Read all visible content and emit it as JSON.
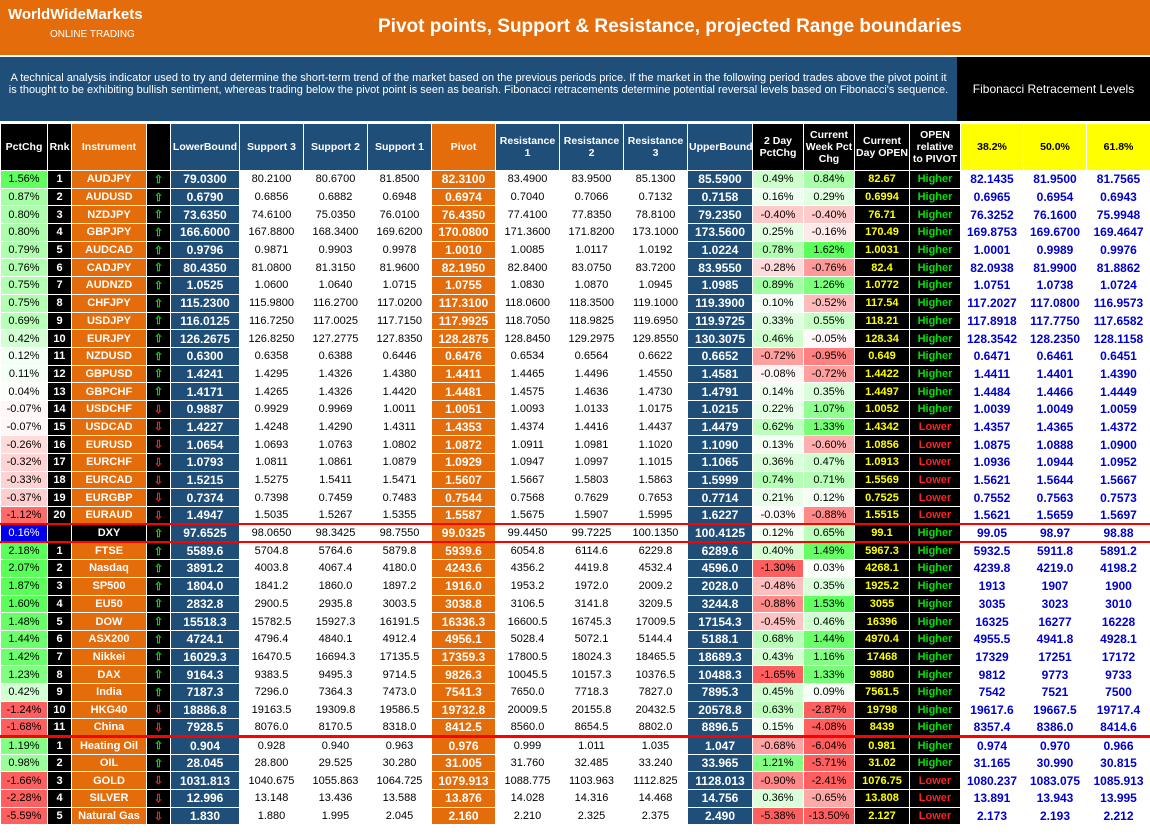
{
  "header": {
    "brand": "WorldWideMarkets",
    "subbrand": "ONLINE TRADING",
    "title": "Pivot points, Support & Resistance, projected Range boundaries"
  },
  "description": "A technical analysis indicator used to try and determine the short-term trend of the market based on the previous periods price. If the market in the following period trades above the pivot point it is thought to be exhibiting bullish sentiment, whereas trading below the pivot point is seen as bearish. Fibonacci retracements determine potential reversal levels based on Fibonacci's sequence.",
  "fib_title": "Fibonacci Retracement Levels",
  "columns": [
    "PctChg",
    "Rnk",
    "Instrument",
    "",
    "LowerBound",
    "Support 3",
    "Support 2",
    "Support 1",
    "Pivot",
    "Resistance 1",
    "Resistance 2",
    "Resistance 3",
    "UpperBound",
    "2 Day PctChg",
    "Current Week Pct Chg",
    "Current Day OPEN",
    "OPEN relative to PIVOT",
    "38.2%",
    "50.0%",
    "61.8%"
  ],
  "colors": {
    "orange": "#e46c0a",
    "navy": "#1f4e79",
    "yellow": "#ffff00",
    "up": "#00e000",
    "down": "#ff2020",
    "fib_text": "#0000cc",
    "sep": "#ff0000"
  },
  "icons": {
    "up": "up-arrow-icon",
    "down": "down-arrow-icon"
  },
  "rows": [
    {
      "pct": "1.56%",
      "rnk": "1",
      "inst": "AUDJPY",
      "dir": "up",
      "lb": "79.0300",
      "s3": "80.2100",
      "s2": "80.6700",
      "s1": "81.8500",
      "pv": "82.3100",
      "r1": "83.4900",
      "r2": "83.9500",
      "r3": "85.1300",
      "ub": "85.5900",
      "d2": "0.49%",
      "wk": "0.84%",
      "op": "82.67",
      "rel": "Higher",
      "f1": "82.1435",
      "f2": "81.9500",
      "f3": "81.7565"
    },
    {
      "pct": "0.87%",
      "rnk": "2",
      "inst": "AUDUSD",
      "dir": "up",
      "lb": "0.6790",
      "s3": "0.6856",
      "s2": "0.6882",
      "s1": "0.6948",
      "pv": "0.6974",
      "r1": "0.7040",
      "r2": "0.7066",
      "r3": "0.7132",
      "ub": "0.7158",
      "d2": "0.16%",
      "wk": "0.29%",
      "op": "0.6994",
      "rel": "Higher",
      "f1": "0.6965",
      "f2": "0.6954",
      "f3": "0.6943"
    },
    {
      "pct": "0.80%",
      "rnk": "3",
      "inst": "NZDJPY",
      "dir": "up",
      "lb": "73.6350",
      "s3": "74.6100",
      "s2": "75.0350",
      "s1": "76.0100",
      "pv": "76.4350",
      "r1": "77.4100",
      "r2": "77.8350",
      "r3": "78.8100",
      "ub": "79.2350",
      "d2": "-0.40%",
      "wk": "-0.40%",
      "op": "76.71",
      "rel": "Higher",
      "f1": "76.3252",
      "f2": "76.1600",
      "f3": "75.9948"
    },
    {
      "pct": "0.80%",
      "rnk": "4",
      "inst": "GBPJPY",
      "dir": "up",
      "lb": "166.6000",
      "s3": "167.8800",
      "s2": "168.3400",
      "s1": "169.6200",
      "pv": "170.0800",
      "r1": "171.3600",
      "r2": "171.8200",
      "r3": "173.1000",
      "ub": "173.5600",
      "d2": "0.25%",
      "wk": "-0.16%",
      "op": "170.49",
      "rel": "Higher",
      "f1": "169.8753",
      "f2": "169.6700",
      "f3": "169.4647"
    },
    {
      "pct": "0.79%",
      "rnk": "5",
      "inst": "AUDCAD",
      "dir": "up",
      "lb": "0.9796",
      "s3": "0.9871",
      "s2": "0.9903",
      "s1": "0.9978",
      "pv": "1.0010",
      "r1": "1.0085",
      "r2": "1.0117",
      "r3": "1.0192",
      "ub": "1.0224",
      "d2": "0.78%",
      "wk": "1.62%",
      "op": "1.0031",
      "rel": "Higher",
      "f1": "1.0001",
      "f2": "0.9989",
      "f3": "0.9976"
    },
    {
      "pct": "0.76%",
      "rnk": "6",
      "inst": "CADJPY",
      "dir": "up",
      "lb": "80.4350",
      "s3": "81.0800",
      "s2": "81.3150",
      "s1": "81.9600",
      "pv": "82.1950",
      "r1": "82.8400",
      "r2": "83.0750",
      "r3": "83.7200",
      "ub": "83.9550",
      "d2": "-0.28%",
      "wk": "-0.76%",
      "op": "82.4",
      "rel": "Higher",
      "f1": "82.0938",
      "f2": "81.9900",
      "f3": "81.8862"
    },
    {
      "pct": "0.75%",
      "rnk": "7",
      "inst": "AUDNZD",
      "dir": "up",
      "lb": "1.0525",
      "s3": "1.0600",
      "s2": "1.0640",
      "s1": "1.0715",
      "pv": "1.0755",
      "r1": "1.0830",
      "r2": "1.0870",
      "r3": "1.0945",
      "ub": "1.0985",
      "d2": "0.89%",
      "wk": "1.26%",
      "op": "1.0772",
      "rel": "Higher",
      "f1": "1.0751",
      "f2": "1.0738",
      "f3": "1.0724"
    },
    {
      "pct": "0.75%",
      "rnk": "8",
      "inst": "CHFJPY",
      "dir": "up",
      "lb": "115.2300",
      "s3": "115.9800",
      "s2": "116.2700",
      "s1": "117.0200",
      "pv": "117.3100",
      "r1": "118.0600",
      "r2": "118.3500",
      "r3": "119.1000",
      "ub": "119.3900",
      "d2": "0.10%",
      "wk": "-0.52%",
      "op": "117.54",
      "rel": "Higher",
      "f1": "117.2027",
      "f2": "117.0800",
      "f3": "116.9573"
    },
    {
      "pct": "0.69%",
      "rnk": "9",
      "inst": "USDJPY",
      "dir": "up",
      "lb": "116.0125",
      "s3": "116.7250",
      "s2": "117.0025",
      "s1": "117.7150",
      "pv": "117.9925",
      "r1": "118.7050",
      "r2": "118.9825",
      "r3": "119.6950",
      "ub": "119.9725",
      "d2": "0.33%",
      "wk": "0.55%",
      "op": "118.21",
      "rel": "Higher",
      "f1": "117.8918",
      "f2": "117.7750",
      "f3": "117.6582"
    },
    {
      "pct": "0.42%",
      "rnk": "10",
      "inst": "EURJPY",
      "dir": "up",
      "lb": "126.2675",
      "s3": "126.8250",
      "s2": "127.2775",
      "s1": "127.8350",
      "pv": "128.2875",
      "r1": "128.8450",
      "r2": "129.2975",
      "r3": "129.8550",
      "ub": "130.3075",
      "d2": "0.46%",
      "wk": "-0.05%",
      "op": "128.34",
      "rel": "Higher",
      "f1": "128.3542",
      "f2": "128.2350",
      "f3": "128.1158"
    },
    {
      "pct": "0.12%",
      "rnk": "11",
      "inst": "NZDUSD",
      "dir": "up",
      "lb": "0.6300",
      "s3": "0.6358",
      "s2": "0.6388",
      "s1": "0.6446",
      "pv": "0.6476",
      "r1": "0.6534",
      "r2": "0.6564",
      "r3": "0.6622",
      "ub": "0.6652",
      "d2": "-0.72%",
      "wk": "-0.95%",
      "op": "0.649",
      "rel": "Higher",
      "f1": "0.6471",
      "f2": "0.6461",
      "f3": "0.6451"
    },
    {
      "pct": "0.11%",
      "rnk": "12",
      "inst": "GBPUSD",
      "dir": "up",
      "lb": "1.4241",
      "s3": "1.4295",
      "s2": "1.4326",
      "s1": "1.4380",
      "pv": "1.4411",
      "r1": "1.4465",
      "r2": "1.4496",
      "r3": "1.4550",
      "ub": "1.4581",
      "d2": "-0.08%",
      "wk": "-0.72%",
      "op": "1.4422",
      "rel": "Higher",
      "f1": "1.4411",
      "f2": "1.4401",
      "f3": "1.4390"
    },
    {
      "pct": "0.04%",
      "rnk": "13",
      "inst": "GBPCHF",
      "dir": "up",
      "lb": "1.4171",
      "s3": "1.4265",
      "s2": "1.4326",
      "s1": "1.4420",
      "pv": "1.4481",
      "r1": "1.4575",
      "r2": "1.4636",
      "r3": "1.4730",
      "ub": "1.4791",
      "d2": "0.14%",
      "wk": "0.35%",
      "op": "1.4497",
      "rel": "Higher",
      "f1": "1.4484",
      "f2": "1.4466",
      "f3": "1.4449"
    },
    {
      "pct": "-0.07%",
      "rnk": "14",
      "inst": "USDCHF",
      "dir": "down",
      "lb": "0.9887",
      "s3": "0.9929",
      "s2": "0.9969",
      "s1": "1.0011",
      "pv": "1.0051",
      "r1": "1.0093",
      "r2": "1.0133",
      "r3": "1.0175",
      "ub": "1.0215",
      "d2": "0.22%",
      "wk": "1.07%",
      "op": "1.0052",
      "rel": "Higher",
      "f1": "1.0039",
      "f2": "1.0049",
      "f3": "1.0059"
    },
    {
      "pct": "-0.07%",
      "rnk": "15",
      "inst": "USDCAD",
      "dir": "down",
      "lb": "1.4227",
      "s3": "1.4248",
      "s2": "1.4290",
      "s1": "1.4311",
      "pv": "1.4353",
      "r1": "1.4374",
      "r2": "1.4416",
      "r3": "1.4437",
      "ub": "1.4479",
      "d2": "0.62%",
      "wk": "1.33%",
      "op": "1.4342",
      "rel": "Lower",
      "f1": "1.4357",
      "f2": "1.4365",
      "f3": "1.4372"
    },
    {
      "pct": "-0.26%",
      "rnk": "16",
      "inst": "EURUSD",
      "dir": "down",
      "lb": "1.0654",
      "s3": "1.0693",
      "s2": "1.0763",
      "s1": "1.0802",
      "pv": "1.0872",
      "r1": "1.0911",
      "r2": "1.0981",
      "r3": "1.1020",
      "ub": "1.1090",
      "d2": "0.13%",
      "wk": "-0.60%",
      "op": "1.0856",
      "rel": "Lower",
      "f1": "1.0875",
      "f2": "1.0888",
      "f3": "1.0900"
    },
    {
      "pct": "-0.32%",
      "rnk": "17",
      "inst": "EURCHF",
      "dir": "down",
      "lb": "1.0793",
      "s3": "1.0811",
      "s2": "1.0861",
      "s1": "1.0879",
      "pv": "1.0929",
      "r1": "1.0947",
      "r2": "1.0997",
      "r3": "1.1015",
      "ub": "1.1065",
      "d2": "0.36%",
      "wk": "0.47%",
      "op": "1.0913",
      "rel": "Lower",
      "f1": "1.0936",
      "f2": "1.0944",
      "f3": "1.0952"
    },
    {
      "pct": "-0.33%",
      "rnk": "18",
      "inst": "EURCAD",
      "dir": "down",
      "lb": "1.5215",
      "s3": "1.5275",
      "s2": "1.5411",
      "s1": "1.5471",
      "pv": "1.5607",
      "r1": "1.5667",
      "r2": "1.5803",
      "r3": "1.5863",
      "ub": "1.5999",
      "d2": "0.74%",
      "wk": "0.71%",
      "op": "1.5569",
      "rel": "Lower",
      "f1": "1.5621",
      "f2": "1.5644",
      "f3": "1.5667"
    },
    {
      "pct": "-0.37%",
      "rnk": "19",
      "inst": "EURGBP",
      "dir": "down",
      "lb": "0.7374",
      "s3": "0.7398",
      "s2": "0.7459",
      "s1": "0.7483",
      "pv": "0.7544",
      "r1": "0.7568",
      "r2": "0.7629",
      "r3": "0.7653",
      "ub": "0.7714",
      "d2": "0.21%",
      "wk": "0.12%",
      "op": "0.7525",
      "rel": "Lower",
      "f1": "0.7552",
      "f2": "0.7563",
      "f3": "0.7573"
    },
    {
      "pct": "-1.12%",
      "rnk": "20",
      "inst": "EURAUD",
      "dir": "down",
      "lb": "1.4947",
      "s3": "1.5035",
      "s2": "1.5267",
      "s1": "1.5355",
      "pv": "1.5587",
      "r1": "1.5675",
      "r2": "1.5907",
      "r3": "1.5995",
      "ub": "1.6227",
      "d2": "-0.03%",
      "wk": "-0.88%",
      "op": "1.5515",
      "rel": "Lower",
      "f1": "1.5621",
      "f2": "1.5659",
      "f3": "1.5697"
    },
    {
      "pct": "0.16%",
      "rnk": "",
      "inst": "DXY",
      "dir": "up",
      "lb": "97.6525",
      "s3": "98.0650",
      "s2": "98.3425",
      "s1": "98.7550",
      "pv": "99.0325",
      "r1": "99.4450",
      "r2": "99.7225",
      "r3": "100.1350",
      "ub": "100.4125",
      "d2": "0.12%",
      "wk": "0.65%",
      "op": "99.1",
      "rel": "Higher",
      "f1": "99.05",
      "f2": "98.97",
      "f3": "98.88",
      "cls": "dxy"
    },
    {
      "pct": "2.18%",
      "rnk": "1",
      "inst": "FTSE",
      "dir": "up",
      "lb": "5589.6",
      "s3": "5704.8",
      "s2": "5764.6",
      "s1": "5879.8",
      "pv": "5939.6",
      "r1": "6054.8",
      "r2": "6114.6",
      "r3": "6229.8",
      "ub": "6289.6",
      "d2": "0.40%",
      "wk": "1.49%",
      "op": "5967.3",
      "rel": "Higher",
      "f1": "5932.5",
      "f2": "5911.8",
      "f3": "5891.2"
    },
    {
      "pct": "2.07%",
      "rnk": "2",
      "inst": "Nasdaq",
      "dir": "up",
      "lb": "3891.2",
      "s3": "4003.8",
      "s2": "4067.4",
      "s1": "4180.0",
      "pv": "4243.6",
      "r1": "4356.2",
      "r2": "4419.8",
      "r3": "4532.4",
      "ub": "4596.0",
      "d2": "-1.30%",
      "wk": "0.03%",
      "op": "4268.1",
      "rel": "Higher",
      "f1": "4239.8",
      "f2": "4219.0",
      "f3": "4198.2"
    },
    {
      "pct": "1.87%",
      "rnk": "3",
      "inst": "SP500",
      "dir": "up",
      "lb": "1804.0",
      "s3": "1841.2",
      "s2": "1860.0",
      "s1": "1897.2",
      "pv": "1916.0",
      "r1": "1953.2",
      "r2": "1972.0",
      "r3": "2009.2",
      "ub": "2028.0",
      "d2": "-0.48%",
      "wk": "0.35%",
      "op": "1925.2",
      "rel": "Higher",
      "f1": "1913",
      "f2": "1907",
      "f3": "1900"
    },
    {
      "pct": "1.60%",
      "rnk": "4",
      "inst": "EU50",
      "dir": "up",
      "lb": "2832.8",
      "s3": "2900.5",
      "s2": "2935.8",
      "s1": "3003.5",
      "pv": "3038.8",
      "r1": "3106.5",
      "r2": "3141.8",
      "r3": "3209.5",
      "ub": "3244.8",
      "d2": "-0.88%",
      "wk": "1.53%",
      "op": "3055",
      "rel": "Higher",
      "f1": "3035",
      "f2": "3023",
      "f3": "3010"
    },
    {
      "pct": "1.48%",
      "rnk": "5",
      "inst": "DOW",
      "dir": "up",
      "lb": "15518.3",
      "s3": "15782.5",
      "s2": "15927.3",
      "s1": "16191.5",
      "pv": "16336.3",
      "r1": "16600.5",
      "r2": "16745.3",
      "r3": "17009.5",
      "ub": "17154.3",
      "d2": "-0.45%",
      "wk": "0.46%",
      "op": "16396",
      "rel": "Higher",
      "f1": "16325",
      "f2": "16277",
      "f3": "16228"
    },
    {
      "pct": "1.44%",
      "rnk": "6",
      "inst": "ASX200",
      "dir": "up",
      "lb": "4724.1",
      "s3": "4796.4",
      "s2": "4840.1",
      "s1": "4912.4",
      "pv": "4956.1",
      "r1": "5028.4",
      "r2": "5072.1",
      "r3": "5144.4",
      "ub": "5188.1",
      "d2": "0.68%",
      "wk": "1.44%",
      "op": "4970.4",
      "rel": "Higher",
      "f1": "4955.5",
      "f2": "4941.8",
      "f3": "4928.1"
    },
    {
      "pct": "1.42%",
      "rnk": "7",
      "inst": "Nikkei",
      "dir": "up",
      "lb": "16029.3",
      "s3": "16470.5",
      "s2": "16694.3",
      "s1": "17135.5",
      "pv": "17359.3",
      "r1": "17800.5",
      "r2": "18024.3",
      "r3": "18465.5",
      "ub": "18689.3",
      "d2": "0.43%",
      "wk": "1.16%",
      "op": "17468",
      "rel": "Higher",
      "f1": "17329",
      "f2": "17251",
      "f3": "17172"
    },
    {
      "pct": "1.23%",
      "rnk": "8",
      "inst": "DAX",
      "dir": "up",
      "lb": "9164.3",
      "s3": "9383.5",
      "s2": "9495.3",
      "s1": "9714.5",
      "pv": "9826.3",
      "r1": "10045.5",
      "r2": "10157.3",
      "r3": "10376.5",
      "ub": "10488.3",
      "d2": "-1.65%",
      "wk": "1.33%",
      "op": "9880",
      "rel": "Higher",
      "f1": "9812",
      "f2": "9773",
      "f3": "9733"
    },
    {
      "pct": "0.42%",
      "rnk": "9",
      "inst": "India",
      "dir": "up",
      "lb": "7187.3",
      "s3": "7296.0",
      "s2": "7364.3",
      "s1": "7473.0",
      "pv": "7541.3",
      "r1": "7650.0",
      "r2": "7718.3",
      "r3": "7827.0",
      "ub": "7895.3",
      "d2": "0.45%",
      "wk": "0.09%",
      "op": "7561.5",
      "rel": "Higher",
      "f1": "7542",
      "f2": "7521",
      "f3": "7500"
    },
    {
      "pct": "-1.24%",
      "rnk": "10",
      "inst": "HKG40",
      "dir": "down",
      "lb": "18886.8",
      "s3": "19163.5",
      "s2": "19309.8",
      "s1": "19586.5",
      "pv": "19732.8",
      "r1": "20009.5",
      "r2": "20155.8",
      "r3": "20432.5",
      "ub": "20578.8",
      "d2": "0.63%",
      "wk": "-2.87%",
      "op": "19798",
      "rel": "Higher",
      "f1": "19617.6",
      "f2": "19667.5",
      "f3": "19717.4"
    },
    {
      "pct": "-1.68%",
      "rnk": "11",
      "inst": "China",
      "dir": "down",
      "lb": "7928.5",
      "s3": "8076.0",
      "s2": "8170.5",
      "s1": "8318.0",
      "pv": "8412.5",
      "r1": "8560.0",
      "r2": "8654.5",
      "r3": "8802.0",
      "ub": "8896.5",
      "d2": "0.15%",
      "wk": "-4.08%",
      "op": "8439",
      "rel": "Higher",
      "f1": "8357.4",
      "f2": "8386.0",
      "f3": "8414.6"
    },
    {
      "pct": "1.19%",
      "rnk": "1",
      "inst": "Heating Oil",
      "dir": "up",
      "lb": "0.904",
      "s3": "0.928",
      "s2": "0.940",
      "s1": "0.963",
      "pv": "0.976",
      "r1": "0.999",
      "r2": "1.011",
      "r3": "1.035",
      "ub": "1.047",
      "d2": "-0.68%",
      "wk": "-6.04%",
      "op": "0.981",
      "rel": "Higher",
      "f1": "0.974",
      "f2": "0.970",
      "f3": "0.966",
      "cls": "sect"
    },
    {
      "pct": "0.98%",
      "rnk": "2",
      "inst": "OIL",
      "dir": "up",
      "lb": "28.045",
      "s3": "28.800",
      "s2": "29.525",
      "s1": "30.280",
      "pv": "31.005",
      "r1": "31.760",
      "r2": "32.485",
      "r3": "33.240",
      "ub": "33.965",
      "d2": "1.21%",
      "wk": "-5.71%",
      "op": "31.02",
      "rel": "Higher",
      "f1": "31.165",
      "f2": "30.990",
      "f3": "30.815"
    },
    {
      "pct": "-1.66%",
      "rnk": "3",
      "inst": "GOLD",
      "dir": "down",
      "lb": "1031.813",
      "s3": "1040.675",
      "s2": "1055.863",
      "s1": "1064.725",
      "pv": "1079.913",
      "r1": "1088.775",
      "r2": "1103.963",
      "r3": "1112.825",
      "ub": "1128.013",
      "d2": "-0.90%",
      "wk": "-2.41%",
      "op": "1076.75",
      "rel": "Lower",
      "f1": "1080.237",
      "f2": "1083.075",
      "f3": "1085.913"
    },
    {
      "pct": "-2.28%",
      "rnk": "4",
      "inst": "SILVER",
      "dir": "down",
      "lb": "12.996",
      "s3": "13.148",
      "s2": "13.436",
      "s1": "13.588",
      "pv": "13.876",
      "r1": "14.028",
      "r2": "14.316",
      "r3": "14.468",
      "ub": "14.756",
      "d2": "0.36%",
      "wk": "-0.65%",
      "op": "13.808",
      "rel": "Lower",
      "f1": "13.891",
      "f2": "13.943",
      "f3": "13.995"
    },
    {
      "pct": "-5.59%",
      "rnk": "5",
      "inst": "Natural Gas",
      "dir": "down",
      "lb": "1.830",
      "s3": "1.880",
      "s2": "1.995",
      "s1": "2.045",
      "pv": "2.160",
      "r1": "2.210",
      "r2": "2.325",
      "r3": "2.375",
      "ub": "2.490",
      "d2": "-5.38%",
      "wk": "-13.50%",
      "op": "2.127",
      "rel": "Lower",
      "f1": "2.173",
      "f2": "2.193",
      "f3": "2.212"
    }
  ]
}
